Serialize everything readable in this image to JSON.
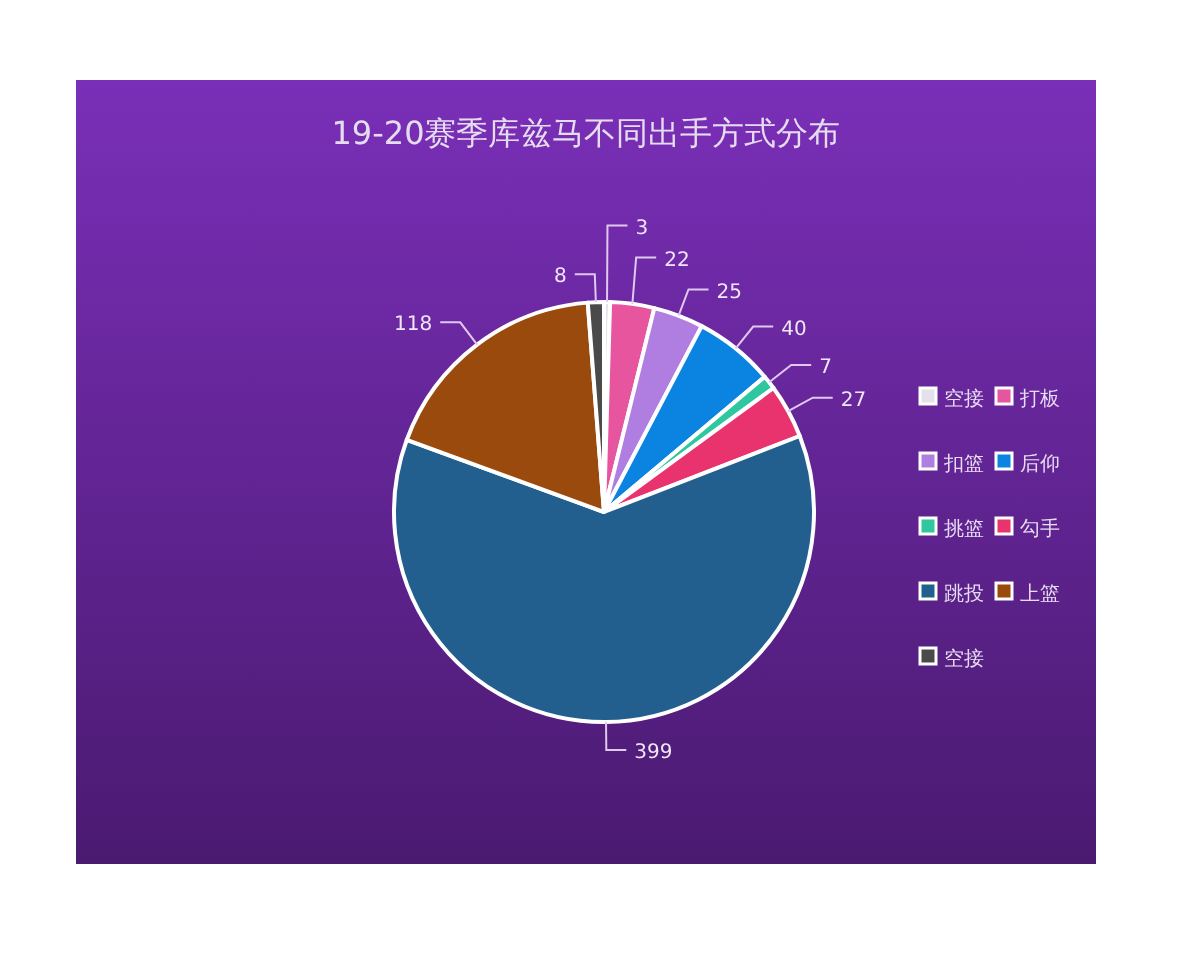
{
  "chart_data": {
    "type": "pie",
    "title": "19-20赛季库兹马不同出手方式分布",
    "categories": [
      "空接",
      "打板",
      "扣篮",
      "后仰",
      "挑篮",
      "勾手",
      "跳投",
      "上篮",
      "空接"
    ],
    "values": [
      3,
      22,
      25,
      40,
      7,
      27,
      399,
      118,
      8
    ],
    "colors": [
      "#e6e0ea",
      "#e8559f",
      "#b07ee0",
      "#0a84e0",
      "#2ec7a0",
      "#e8336f",
      "#235f8e",
      "#9a4a0c",
      "#4a4a4a"
    ],
    "data_labels": true,
    "legend": "right"
  }
}
